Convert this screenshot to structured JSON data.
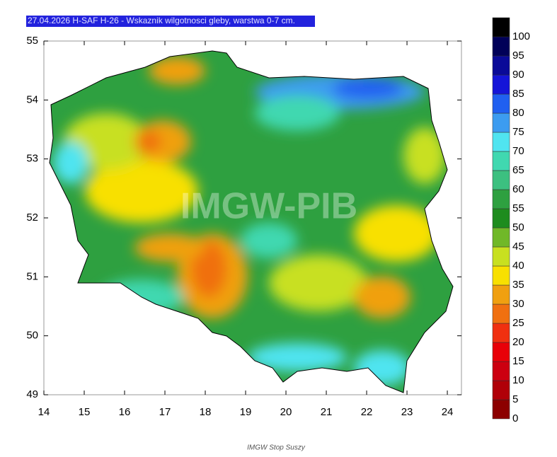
{
  "header": {
    "title": "27.04.2026 H-SAF H-26 - Wskaznik wilgotnosci gleby, warstwa 0-7 cm."
  },
  "map": {
    "lon_range": [
      14,
      24.35
    ],
    "lat_range": [
      49,
      55
    ],
    "lon_ticks": [
      14,
      15,
      16,
      17,
      18,
      19,
      20,
      21,
      22,
      23,
      24
    ],
    "lat_ticks": [
      49,
      50,
      51,
      52,
      53,
      54,
      55
    ],
    "watermark": "IMGW-PIB"
  },
  "colorbar": {
    "levels": [
      0,
      5,
      10,
      15,
      20,
      25,
      30,
      35,
      40,
      45,
      50,
      55,
      60,
      65,
      70,
      75,
      80,
      85,
      90,
      95,
      100
    ],
    "colors": [
      "#8c0000",
      "#b00008",
      "#cc0010",
      "#e80008",
      "#f03010",
      "#f07010",
      "#f0a010",
      "#f8e000",
      "#c8e020",
      "#70b828",
      "#1e8c1e",
      "#2ea040",
      "#3cc080",
      "#40d8b0",
      "#50e4f0",
      "#3c9cf0",
      "#2060f0",
      "#1515d8",
      "#0a0a98",
      "#000058",
      "#000000"
    ]
  },
  "caption": "IMGW Stop Suszy"
}
